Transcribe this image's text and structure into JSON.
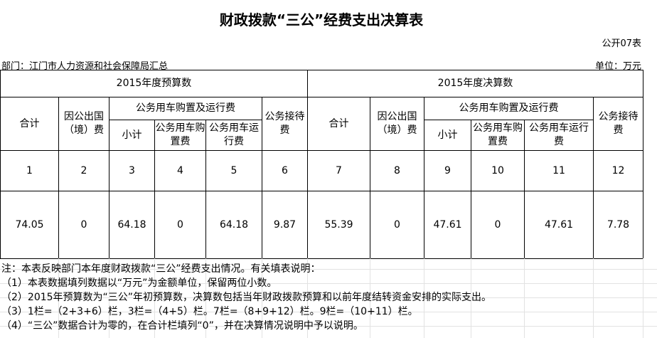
{
  "title": "财政拨款“三公”经费支出决算表",
  "form_code": "公开07表",
  "department": "部门：江门市人力资源和社会保障局汇总",
  "unit": "单位：万元",
  "table": {
    "group_budget": "2015年度预算数",
    "group_final": "2015年度决算数",
    "total": "合计",
    "abroad": "因公出国（境）费",
    "car_group": "公务用车购置及运行费",
    "subtotal": "小计",
    "car_purchase": "公务用车购置费",
    "car_operation": "公务用车运行费",
    "reception": "公务接待费",
    "col_numbers": [
      "1",
      "2",
      "3",
      "4",
      "5",
      "6",
      "7",
      "8",
      "9",
      "10",
      "11",
      "12"
    ],
    "values": [
      "74.05",
      "0",
      "64.18",
      "0",
      "64.18",
      "9.87",
      "55.39",
      "0",
      "47.61",
      "0",
      "47.61",
      "7.78"
    ]
  },
  "notes": [
    "注：本表反映部门本年度财政拨款“三公”经费支出情况。有关填表说明：",
    "（1）本表数据填列数据以“万元”为金额单位，保留两位小数。",
    "（2）2015年预算数为“三公”年初预算数，决算数包括当年财政拨款预算和以前年度结转资金安排的实际支出。",
    "（3）1栏=（2+3+6）栏，3栏=（4+5）栏。7栏=（8+9+12）栏。9栏=（10+11）栏。",
    "（4）“三公”数据合计为零的，在合计栏填列“0”，并在决算情况说明中予以说明。"
  ]
}
